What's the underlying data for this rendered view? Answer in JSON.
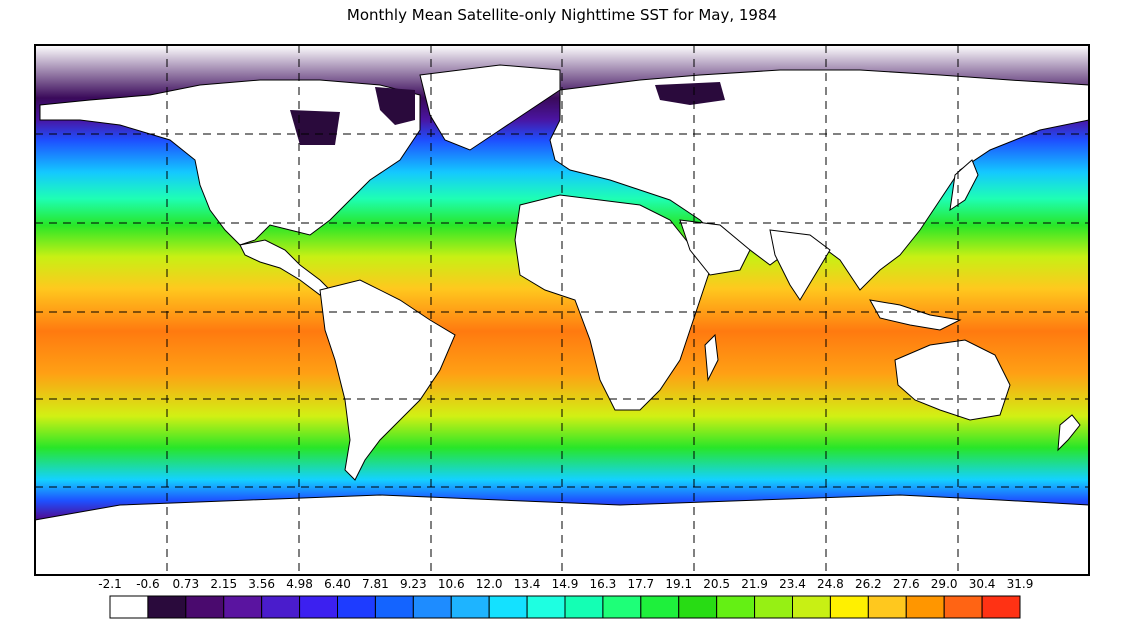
{
  "title": "Monthly Mean Satellite-only Nighttime SST for May, 1984",
  "legend": {
    "labels": [
      "-2.1",
      "-0.6",
      "0.73",
      "2.15",
      "3.56",
      "4.98",
      "6.40",
      "7.81",
      "9.23",
      "10.6",
      "12.0",
      "13.4",
      "14.9",
      "16.3",
      "17.7",
      "19.1",
      "20.5",
      "21.9",
      "23.4",
      "24.8",
      "26.2",
      "27.6",
      "29.0",
      "30.4",
      "31.9"
    ],
    "colors": [
      "#ffffff",
      "#2a0a3c",
      "#4a0a6e",
      "#5a14a0",
      "#4a1ccc",
      "#3c20f0",
      "#1e3cff",
      "#1464ff",
      "#1e8cff",
      "#1eb4ff",
      "#14e1ff",
      "#1effe1",
      "#14ffb4",
      "#1eff78",
      "#1ef03c",
      "#28dc14",
      "#64f014",
      "#96f014",
      "#c8f014",
      "#fff000",
      "#ffc81e",
      "#ff9600",
      "#ff6414",
      "#ff3214"
    ]
  },
  "map": {
    "projection": "equirectangular",
    "variable": "sea surface temperature (deg C)",
    "gridlines": "dashed"
  }
}
